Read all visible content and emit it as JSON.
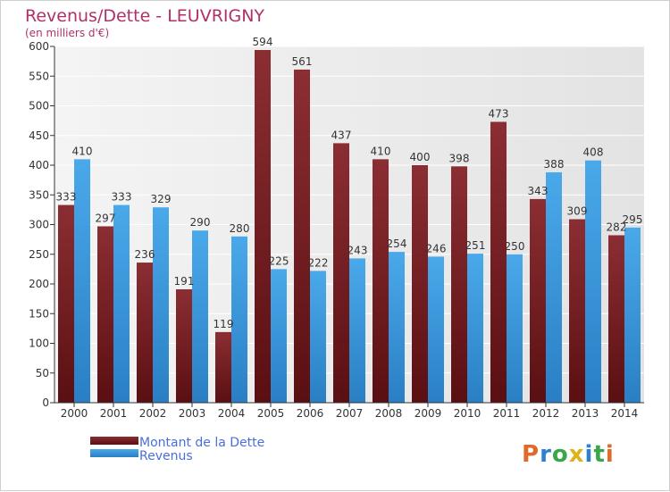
{
  "chart_data": {
    "type": "bar",
    "title": "Revenus/Dette - LEUVRIGNY",
    "subtitle": "(en milliers d'€)",
    "categories": [
      "2000",
      "2001",
      "2002",
      "2003",
      "2004",
      "2005",
      "2006",
      "2007",
      "2008",
      "2009",
      "2010",
      "2011",
      "2012",
      "2013",
      "2014"
    ],
    "series": [
      {
        "name": "Montant de la Dette",
        "color": "#7a1f24",
        "values": [
          333,
          297,
          236,
          191,
          119,
          594,
          561,
          437,
          410,
          400,
          398,
          473,
          343,
          309,
          282
        ]
      },
      {
        "name": "Revenus",
        "color": "#3f9fe0",
        "values": [
          410,
          333,
          329,
          290,
          280,
          225,
          222,
          243,
          254,
          246,
          251,
          250,
          388,
          408,
          295
        ]
      }
    ],
    "ylim": [
      0,
      600
    ],
    "yticks": [
      0,
      50,
      100,
      150,
      200,
      250,
      300,
      350,
      400,
      450,
      500,
      550,
      600
    ],
    "grid": true,
    "legend_position": "bottom-left"
  },
  "logo": {
    "text": "Proxiti",
    "colors": [
      "#e06a2a",
      "#2f7fd0",
      "#3aa64a",
      "#e0b21a",
      "#2f7fd0",
      "#3aa64a",
      "#e06a2a"
    ]
  }
}
